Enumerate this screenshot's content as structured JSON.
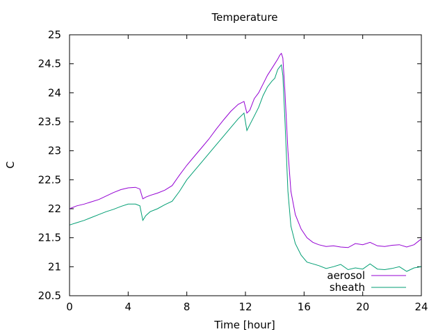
{
  "chart_data": {
    "type": "line",
    "title": "Temperature",
    "xlabel": "Time [hour]",
    "ylabel": "C",
    "xlim": [
      0,
      24
    ],
    "ylim": [
      20.5,
      25
    ],
    "xticks": [
      0,
      4,
      8,
      12,
      16,
      20,
      24
    ],
    "xtick_labels": [
      "0",
      "4",
      "8",
      "12",
      "16",
      "20",
      "24"
    ],
    "yticks": [
      20.5,
      21,
      21.5,
      22,
      22.5,
      23,
      23.5,
      24,
      24.5,
      25
    ],
    "ytick_labels": [
      "20.5",
      "21",
      "21.5",
      "22",
      "22.5",
      "23",
      "23.5",
      "24",
      "24.5",
      "25"
    ],
    "grid": false,
    "legend_position": "bottom-right",
    "series": [
      {
        "name": "aerosol",
        "color": "#9400d3",
        "x": [
          0,
          0.5,
          1,
          1.5,
          2,
          2.5,
          3,
          3.5,
          4,
          4.5,
          4.8,
          5.0,
          5.2,
          5.5,
          6,
          6.5,
          7,
          7.5,
          8,
          8.5,
          9,
          9.5,
          10,
          10.5,
          11,
          11.5,
          11.9,
          12.1,
          12.3,
          12.6,
          12.9,
          13.2,
          13.5,
          13.8,
          14.0,
          14.2,
          14.35,
          14.45,
          14.55,
          14.7,
          14.9,
          15.1,
          15.4,
          15.8,
          16.2,
          16.6,
          17.0,
          17.5,
          18,
          18.5,
          19,
          19.5,
          20,
          20.5,
          21,
          21.5,
          22,
          22.5,
          23,
          23.5,
          24
        ],
        "y": [
          22.0,
          22.05,
          22.08,
          22.12,
          22.16,
          22.22,
          22.28,
          22.33,
          22.36,
          22.37,
          22.34,
          22.17,
          22.2,
          22.23,
          22.27,
          22.32,
          22.4,
          22.58,
          22.75,
          22.9,
          23.05,
          23.2,
          23.37,
          23.53,
          23.68,
          23.8,
          23.85,
          23.65,
          23.7,
          23.9,
          24.0,
          24.15,
          24.3,
          24.42,
          24.5,
          24.58,
          24.65,
          24.68,
          24.6,
          24.0,
          23.0,
          22.3,
          21.9,
          21.65,
          21.5,
          21.42,
          21.38,
          21.35,
          21.36,
          21.34,
          21.33,
          21.4,
          21.38,
          21.42,
          21.36,
          21.35,
          21.37,
          21.38,
          21.34,
          21.38,
          21.48
        ]
      },
      {
        "name": "sheath",
        "color": "#009e73",
        "x": [
          0,
          0.5,
          1,
          1.5,
          2,
          2.5,
          3,
          3.5,
          4,
          4.5,
          4.8,
          5.0,
          5.2,
          5.5,
          6,
          6.5,
          7,
          7.5,
          8,
          8.5,
          9,
          9.5,
          10,
          10.5,
          11,
          11.5,
          11.9,
          12.1,
          12.3,
          12.6,
          12.9,
          13.2,
          13.5,
          13.8,
          14.0,
          14.2,
          14.35,
          14.45,
          14.55,
          14.7,
          14.9,
          15.1,
          15.4,
          15.8,
          16.2,
          16.6,
          17.0,
          17.5,
          18,
          18.5,
          19,
          19.5,
          20,
          20.5,
          21,
          21.5,
          22,
          22.5,
          23,
          23.5,
          24
        ],
        "y": [
          21.72,
          21.76,
          21.8,
          21.85,
          21.9,
          21.95,
          21.99,
          22.04,
          22.08,
          22.08,
          22.05,
          21.8,
          21.88,
          21.95,
          22.0,
          22.07,
          22.13,
          22.3,
          22.5,
          22.65,
          22.8,
          22.95,
          23.1,
          23.25,
          23.4,
          23.55,
          23.65,
          23.35,
          23.45,
          23.6,
          23.75,
          23.95,
          24.1,
          24.2,
          24.25,
          24.4,
          24.45,
          24.48,
          24.3,
          23.5,
          22.3,
          21.7,
          21.4,
          21.2,
          21.08,
          21.05,
          21.02,
          20.97,
          21.0,
          21.04,
          20.95,
          20.98,
          20.96,
          21.05,
          20.96,
          20.95,
          20.97,
          21.0,
          20.92,
          20.98,
          21.0
        ]
      }
    ]
  }
}
